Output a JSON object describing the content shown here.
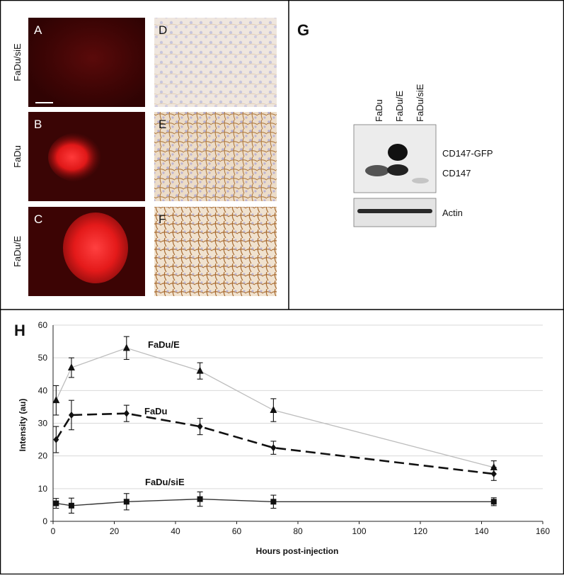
{
  "panels": {
    "letters": [
      "A",
      "B",
      "C",
      "D",
      "E",
      "F",
      "G",
      "H"
    ],
    "row_labels": [
      "FaDu/siE",
      "FaDu",
      "FaDu/E"
    ]
  },
  "western_blot": {
    "lane_labels": [
      "FaDu",
      "FaDu/E",
      "FaDu/siE"
    ],
    "band_labels": [
      "CD147-GFP",
      "CD147"
    ],
    "control_label": "Actin"
  },
  "chart_data": {
    "type": "line",
    "xlabel": "Hours post-injection",
    "ylabel": "Intensity (au)",
    "xlim": [
      0,
      160
    ],
    "ylim": [
      0,
      60
    ],
    "xticks": [
      0,
      20,
      40,
      60,
      80,
      100,
      120,
      140,
      160
    ],
    "yticks": [
      0,
      10,
      20,
      30,
      40,
      50,
      60
    ],
    "grid": "horizontal",
    "x": [
      1,
      6,
      24,
      48,
      72,
      144
    ],
    "series": [
      {
        "name": "FaDu/E",
        "marker": "triangle",
        "line": "solid-light",
        "color": "#bdbdbd",
        "values": [
          37,
          47,
          53,
          46,
          34,
          16.5
        ],
        "errors": [
          4.5,
          3,
          3.5,
          2.5,
          3.5,
          2
        ]
      },
      {
        "name": "FaDu",
        "marker": "diamond",
        "line": "dashed",
        "color": "#111111",
        "values": [
          25,
          32.5,
          33,
          29,
          22.5,
          14.5
        ],
        "errors": [
          4,
          4.5,
          2.5,
          2.5,
          2,
          2
        ]
      },
      {
        "name": "FaDu/siE",
        "marker": "square",
        "line": "solid",
        "color": "#333333",
        "values": [
          5.5,
          4.8,
          6,
          6.8,
          6,
          6
        ],
        "errors": [
          1.5,
          2.3,
          2.5,
          2.2,
          2,
          1.2
        ]
      }
    ]
  }
}
